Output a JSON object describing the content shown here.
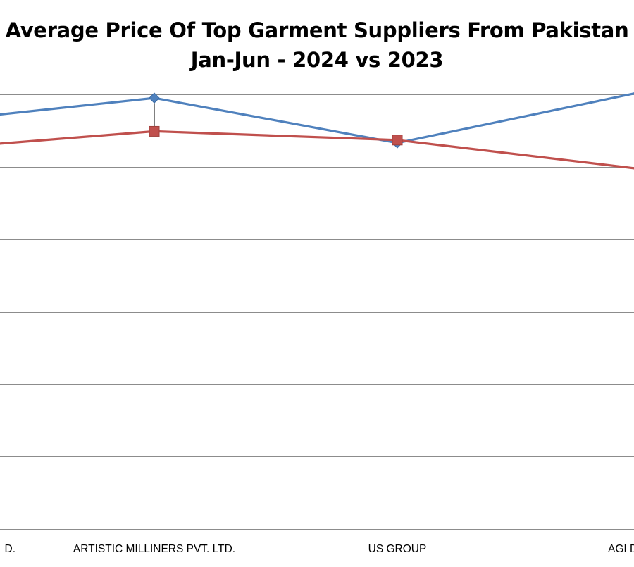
{
  "chart_data": {
    "type": "line",
    "title": "Average Price Of Top Garment Suppliers From Pakistan",
    "subtitle": "Jan-Jun - 2024 vs 2023",
    "categories": [
      "…D.",
      "ARTISTIC MILLINERS PVT. LTD.",
      "US GROUP",
      "AGI …"
    ],
    "category_positions": [
      -0.2,
      1,
      2,
      3
    ],
    "series": [
      {
        "values": [
          5.52,
          5.95,
          5.33,
          6.03
        ],
        "color": "#4F81BD",
        "marker": "diamond"
      },
      {
        "values": [
          5.17,
          5.49,
          5.37,
          4.97
        ],
        "color": "#C0504D",
        "marker": "square"
      }
    ],
    "ylim": [
      0,
      6
    ],
    "y_gridlines": [
      0,
      1,
      2,
      3,
      4,
      5,
      6
    ],
    "grid": true,
    "high_low_lines": true,
    "legend": "none"
  }
}
